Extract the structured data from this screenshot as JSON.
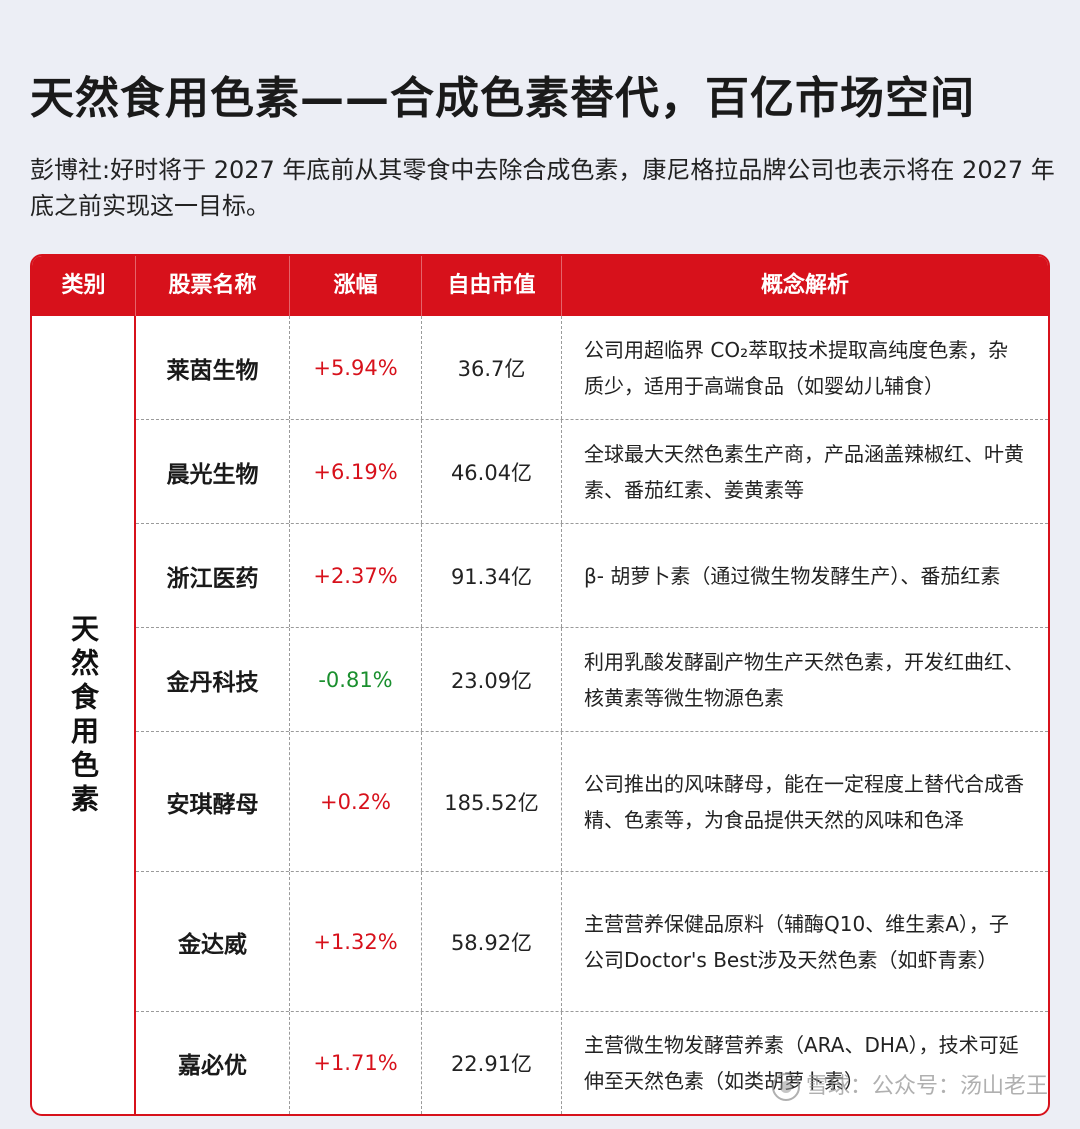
{
  "title": "天然食用色素——合成色素替代，百亿市场空间",
  "intro": "彭博社:好时将于 2027 年底前从其零食中去除合成色素，康尼格拉品牌公司也表示将在 2027 年底之前实现这一目标。",
  "table": {
    "headers": [
      "类别",
      "股票名称",
      "涨幅",
      "自由市值",
      "概念解析"
    ],
    "category": "天然食用色素",
    "rows": [
      {
        "name": "莱茵生物",
        "change": "+5.94%",
        "cap": "36.7亿",
        "desc": "公司用超临界 CO₂萃取技术提取高纯度色素，杂质少，适用于高端食品（如婴幼儿辅食）"
      },
      {
        "name": "晨光生物",
        "change": "+6.19%",
        "cap": "46.04亿",
        "desc": "全球最大天然色素生产商，产品涵盖辣椒红、叶黄素、番茄红素、姜黄素等"
      },
      {
        "name": "浙江医药",
        "change": "+2.37%",
        "cap": "91.34亿",
        "desc": "β- 胡萝卜素（通过微生物发酵生产）、番茄红素"
      },
      {
        "name": "金丹科技",
        "change": "-0.81%",
        "cap": "23.09亿",
        "desc": "利用乳酸发酵副产物生产天然色素，开发红曲红、核黄素等微生物源色素"
      },
      {
        "name": "安琪酵母",
        "change": "+0.2%",
        "cap": "185.52亿",
        "desc": "公司推出的风味酵母，能在一定程度上替代合成香精、色素等，为食品提供天然的风味和色泽"
      },
      {
        "name": "金达威",
        "change": "+1.32%",
        "cap": "58.92亿",
        "desc": "主营营养保健品原料（辅酶Q10、维生素A），子公司Doctor's Best涉及天然色素（如虾青素）"
      },
      {
        "name": "嘉必优",
        "change": "+1.71%",
        "cap": "22.91亿",
        "desc": "主营微生物发酵营养素（ARA、DHA），技术可延伸至天然色素（如类胡萝卜素）"
      }
    ]
  },
  "watermark": "雪球：公众号：汤山老王",
  "colors": {
    "accent": "#d7111b",
    "up": "#d7111b",
    "down": "#1a8f2e"
  }
}
